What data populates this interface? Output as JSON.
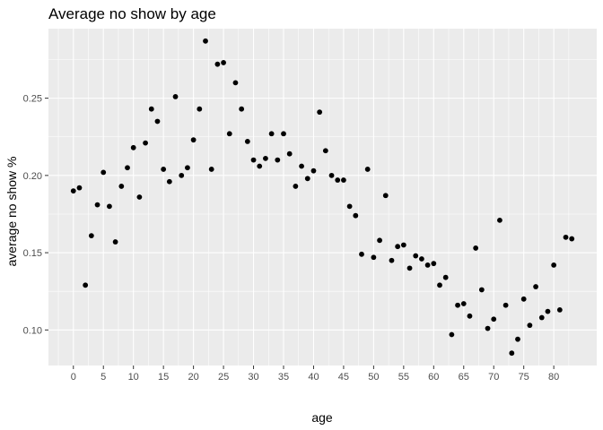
{
  "chart_data": {
    "type": "scatter",
    "title": "Average no show by age",
    "xlabel": "age",
    "ylabel": "average no show %",
    "xlim": [
      -4.15,
      87.15
    ],
    "ylim": [
      0.077,
      0.295
    ],
    "x_ticks": [
      0,
      5,
      10,
      15,
      20,
      25,
      30,
      35,
      40,
      45,
      50,
      55,
      60,
      65,
      70,
      75,
      80
    ],
    "y_ticks": [
      0.1,
      0.15,
      0.2,
      0.25
    ],
    "y_tick_labels": [
      "0.10",
      "0.15",
      "0.20",
      "0.25"
    ],
    "grid": true,
    "point_color": "#000000",
    "panel_color": "#ebebeb",
    "grid_color": "#ffffff",
    "points": [
      {
        "x": 0,
        "y": 0.19
      },
      {
        "x": 1,
        "y": 0.192
      },
      {
        "x": 2,
        "y": 0.129
      },
      {
        "x": 3,
        "y": 0.161
      },
      {
        "x": 4,
        "y": 0.181
      },
      {
        "x": 5,
        "y": 0.202
      },
      {
        "x": 6,
        "y": 0.18
      },
      {
        "x": 7,
        "y": 0.157
      },
      {
        "x": 8,
        "y": 0.193
      },
      {
        "x": 9,
        "y": 0.205
      },
      {
        "x": 10,
        "y": 0.218
      },
      {
        "x": 11,
        "y": 0.186
      },
      {
        "x": 12,
        "y": 0.221
      },
      {
        "x": 13,
        "y": 0.243
      },
      {
        "x": 14,
        "y": 0.235
      },
      {
        "x": 15,
        "y": 0.204
      },
      {
        "x": 16,
        "y": 0.196
      },
      {
        "x": 17,
        "y": 0.251
      },
      {
        "x": 18,
        "y": 0.2
      },
      {
        "x": 19,
        "y": 0.205
      },
      {
        "x": 20,
        "y": 0.223
      },
      {
        "x": 21,
        "y": 0.243
      },
      {
        "x": 22,
        "y": 0.287
      },
      {
        "x": 23,
        "y": 0.204
      },
      {
        "x": 24,
        "y": 0.272
      },
      {
        "x": 25,
        "y": 0.273
      },
      {
        "x": 26,
        "y": 0.227
      },
      {
        "x": 27,
        "y": 0.26
      },
      {
        "x": 28,
        "y": 0.243
      },
      {
        "x": 29,
        "y": 0.222
      },
      {
        "x": 30,
        "y": 0.21
      },
      {
        "x": 31,
        "y": 0.206
      },
      {
        "x": 32,
        "y": 0.211
      },
      {
        "x": 33,
        "y": 0.227
      },
      {
        "x": 34,
        "y": 0.21
      },
      {
        "x": 35,
        "y": 0.227
      },
      {
        "x": 36,
        "y": 0.214
      },
      {
        "x": 37,
        "y": 0.193
      },
      {
        "x": 38,
        "y": 0.206
      },
      {
        "x": 39,
        "y": 0.198
      },
      {
        "x": 40,
        "y": 0.203
      },
      {
        "x": 41,
        "y": 0.241
      },
      {
        "x": 42,
        "y": 0.216
      },
      {
        "x": 43,
        "y": 0.2
      },
      {
        "x": 44,
        "y": 0.197
      },
      {
        "x": 45,
        "y": 0.197
      },
      {
        "x": 46,
        "y": 0.18
      },
      {
        "x": 47,
        "y": 0.174
      },
      {
        "x": 48,
        "y": 0.149
      },
      {
        "x": 49,
        "y": 0.204
      },
      {
        "x": 50,
        "y": 0.147
      },
      {
        "x": 51,
        "y": 0.158
      },
      {
        "x": 52,
        "y": 0.187
      },
      {
        "x": 53,
        "y": 0.145
      },
      {
        "x": 54,
        "y": 0.154
      },
      {
        "x": 55,
        "y": 0.155
      },
      {
        "x": 56,
        "y": 0.14
      },
      {
        "x": 57,
        "y": 0.148
      },
      {
        "x": 58,
        "y": 0.146
      },
      {
        "x": 59,
        "y": 0.142
      },
      {
        "x": 60,
        "y": 0.143
      },
      {
        "x": 61,
        "y": 0.129
      },
      {
        "x": 62,
        "y": 0.134
      },
      {
        "x": 63,
        "y": 0.097
      },
      {
        "x": 64,
        "y": 0.116
      },
      {
        "x": 65,
        "y": 0.117
      },
      {
        "x": 66,
        "y": 0.109
      },
      {
        "x": 67,
        "y": 0.153
      },
      {
        "x": 68,
        "y": 0.126
      },
      {
        "x": 69,
        "y": 0.101
      },
      {
        "x": 70,
        "y": 0.107
      },
      {
        "x": 71,
        "y": 0.171
      },
      {
        "x": 72,
        "y": 0.116
      },
      {
        "x": 73,
        "y": 0.085
      },
      {
        "x": 74,
        "y": 0.094
      },
      {
        "x": 75,
        "y": 0.12
      },
      {
        "x": 76,
        "y": 0.103
      },
      {
        "x": 77,
        "y": 0.128
      },
      {
        "x": 78,
        "y": 0.108
      },
      {
        "x": 79,
        "y": 0.112
      },
      {
        "x": 80,
        "y": 0.142
      },
      {
        "x": 81,
        "y": 0.113
      },
      {
        "x": 82,
        "y": 0.16
      },
      {
        "x": 83,
        "y": 0.159
      }
    ]
  }
}
